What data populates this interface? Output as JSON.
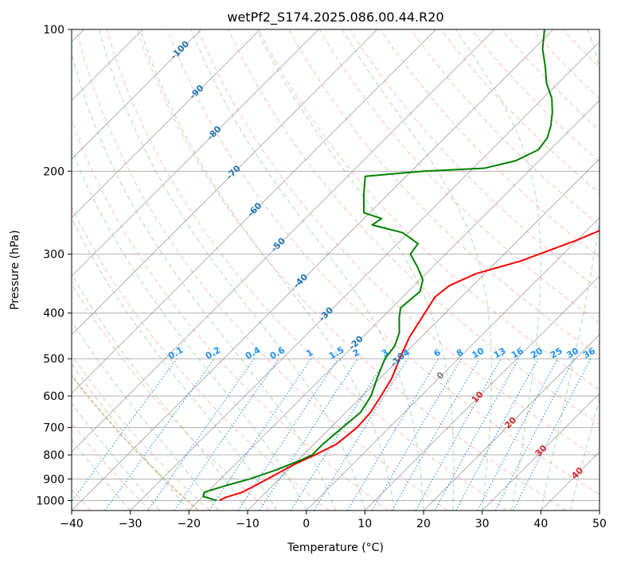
{
  "chart_data": {
    "type": "skew-t",
    "title": "wetPf2_S174.2025.086.00.44.R20",
    "xlabel": "Temperature (°C)",
    "ylabel": "Pressure (hPa)",
    "xlim": [
      -40,
      50
    ],
    "ylim": [
      1050,
      100
    ],
    "y_scale": "log",
    "x_ticks": [
      -40,
      -30,
      -20,
      -10,
      0,
      10,
      20,
      30,
      40,
      50
    ],
    "y_ticks": [
      1000,
      900,
      800,
      700,
      600,
      500,
      400,
      300,
      200,
      100
    ],
    "grid": "horizontal-at-pressure-ticks",
    "temperature_profile": {
      "color": "#ff0000",
      "points": [
        {
          "p": 1000,
          "t": -16.5
        },
        {
          "p": 985,
          "t": -16.0
        },
        {
          "p": 960,
          "t": -14.0
        },
        {
          "p": 900,
          "t": -12.0
        },
        {
          "p": 840,
          "t": -10.0
        },
        {
          "p": 800,
          "t": -8.0
        },
        {
          "p": 760,
          "t": -6.2
        },
        {
          "p": 700,
          "t": -5.5
        },
        {
          "p": 650,
          "t": -5.8
        },
        {
          "p": 600,
          "t": -6.8
        },
        {
          "p": 550,
          "t": -8.0
        },
        {
          "p": 500,
          "t": -10.0
        },
        {
          "p": 450,
          "t": -12.0
        },
        {
          "p": 400,
          "t": -13.5
        },
        {
          "p": 370,
          "t": -14.5
        },
        {
          "p": 350,
          "t": -14.0
        },
        {
          "p": 330,
          "t": -11.5
        },
        {
          "p": 310,
          "t": -6.0
        },
        {
          "p": 280,
          "t": 0.0
        },
        {
          "p": 250,
          "t": 5.5
        },
        {
          "p": 220,
          "t": 10.5
        },
        {
          "p": 200,
          "t": 12.5
        },
        {
          "p": 180,
          "t": 13.5
        },
        {
          "p": 160,
          "t": 15.5
        },
        {
          "p": 140,
          "t": 18.0
        },
        {
          "p": 120,
          "t": 20.5
        },
        {
          "p": 110,
          "t": 22.0
        },
        {
          "p": 100,
          "t": 22.0
        }
      ]
    },
    "dewpoint_profile": {
      "color": "#008000",
      "points": [
        {
          "p": 1000,
          "t": -17.0
        },
        {
          "p": 980,
          "t": -20.0
        },
        {
          "p": 960,
          "t": -20.5
        },
        {
          "p": 930,
          "t": -18.0
        },
        {
          "p": 900,
          "t": -15.0
        },
        {
          "p": 860,
          "t": -12.0
        },
        {
          "p": 820,
          "t": -9.5
        },
        {
          "p": 800,
          "t": -8.5
        },
        {
          "p": 760,
          "t": -8.5
        },
        {
          "p": 700,
          "t": -8.0
        },
        {
          "p": 650,
          "t": -7.5
        },
        {
          "p": 600,
          "t": -8.5
        },
        {
          "p": 550,
          "t": -10.5
        },
        {
          "p": 500,
          "t": -12.5
        },
        {
          "p": 470,
          "t": -13.0
        },
        {
          "p": 440,
          "t": -14.5
        },
        {
          "p": 410,
          "t": -17.0
        },
        {
          "p": 390,
          "t": -18.5
        },
        {
          "p": 360,
          "t": -18.0
        },
        {
          "p": 340,
          "t": -19.5
        },
        {
          "p": 320,
          "t": -22.5
        },
        {
          "p": 300,
          "t": -26.0
        },
        {
          "p": 285,
          "t": -26.5
        },
        {
          "p": 270,
          "t": -31.0
        },
        {
          "p": 260,
          "t": -37.5
        },
        {
          "p": 252,
          "t": -37.0
        },
        {
          "p": 245,
          "t": -41.0
        },
        {
          "p": 225,
          "t": -44.0
        },
        {
          "p": 205,
          "t": -47.0
        },
        {
          "p": 200,
          "t": -38.0
        },
        {
          "p": 197,
          "t": -28.0
        },
        {
          "p": 190,
          "t": -24.0
        },
        {
          "p": 180,
          "t": -22.0
        },
        {
          "p": 170,
          "t": -22.5
        },
        {
          "p": 160,
          "t": -24.0
        },
        {
          "p": 150,
          "t": -26.0
        },
        {
          "p": 140,
          "t": -28.5
        },
        {
          "p": 130,
          "t": -32.0
        },
        {
          "p": 120,
          "t": -35.0
        },
        {
          "p": 110,
          "t": -38.5
        },
        {
          "p": 100,
          "t": -41.5
        }
      ]
    },
    "isotherm_labels": [
      "-100",
      "-90",
      "-80",
      "-70",
      "-60",
      "-50",
      "-40",
      "-30",
      "-20",
      "-10",
      "0",
      "10",
      "20",
      "30",
      "40"
    ],
    "mixing_ratio_labels": [
      "0.1",
      "0.2",
      "0.4",
      "0.6",
      "1",
      "1.5",
      "2",
      "3",
      "4",
      "6",
      "8",
      "10",
      "13",
      "16",
      "20",
      "25",
      "30",
      "36"
    ],
    "mixing_ratio_values": [
      0.1,
      0.2,
      0.4,
      0.6,
      1,
      1.5,
      2,
      3,
      4,
      6,
      8,
      10,
      13,
      16,
      20,
      25,
      30,
      36
    ],
    "dry_adiabat_thetas_c": [
      -40,
      -30,
      -20,
      -10,
      0,
      10,
      20,
      30,
      40,
      50,
      60,
      70,
      80,
      90,
      100,
      110,
      120,
      130,
      140,
      150,
      160,
      170,
      180
    ],
    "moist_adiabat_start_c": [
      -30,
      -25,
      -20,
      -15,
      -10,
      -5,
      0,
      5,
      10,
      15,
      20,
      25,
      30,
      35,
      40,
      45
    ],
    "colors": {
      "temperature": "#ff0000",
      "dewpoint": "#008000",
      "isotherm": "#808080",
      "dry_adiabat": "#fa8072",
      "moist_adiabat": "#7fbf7f",
      "mixing_ratio": "#1e90ff",
      "isotherm_label_cold": "#1f77b4",
      "isotherm_label_zero": "#808080",
      "isotherm_label_warm": "#d62728",
      "parcel_curve": "#d2b48c"
    }
  }
}
